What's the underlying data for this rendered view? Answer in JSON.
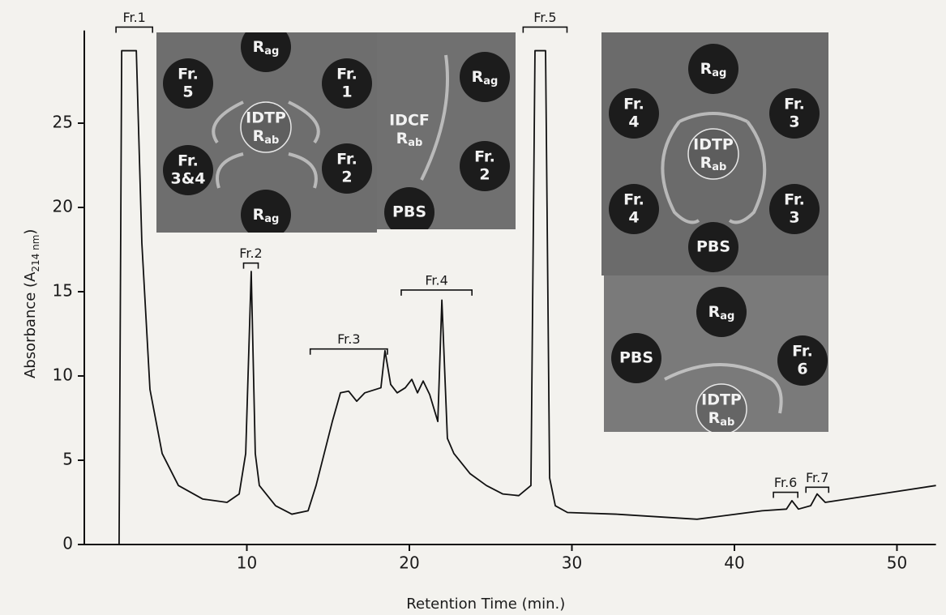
{
  "chart_data": {
    "type": "line",
    "xlabel": "Retention Time (min.)",
    "ylabel_parts": [
      "Absorbance (A",
      "214 nm",
      ")"
    ],
    "x": [
      2.14,
      2.3,
      3.2,
      3.54,
      4.04,
      4.79,
      5.79,
      7.28,
      8.78,
      9.53,
      9.93,
      10.27,
      10.52,
      10.77,
      11.77,
      12.77,
      13.77,
      14.26,
      15.26,
      15.76,
      16.26,
      16.76,
      17.26,
      18.25,
      18.5,
      18.85,
      19.25,
      19.75,
      20.15,
      20.5,
      20.85,
      21.25,
      21.75,
      22.0,
      22.34,
      22.74,
      23.74,
      24.74,
      25.74,
      26.73,
      27.48,
      27.73,
      28.38,
      28.63,
      28.98,
      29.73,
      32.72,
      37.7,
      41.7,
      43.2,
      43.54,
      43.94,
      44.69,
      45.09,
      45.59,
      49.68,
      52.4
    ],
    "values": [
      0,
      29.3,
      29.3,
      17.9,
      9.2,
      5.4,
      3.5,
      2.7,
      2.5,
      3.0,
      5.4,
      16.2,
      5.4,
      3.5,
      2.3,
      1.8,
      2.0,
      3.5,
      7.3,
      9.0,
      9.1,
      8.5,
      9.0,
      9.3,
      11.5,
      9.5,
      9.0,
      9.3,
      9.8,
      9.0,
      9.7,
      8.9,
      7.3,
      14.5,
      6.3,
      5.4,
      4.2,
      3.5,
      3.0,
      2.9,
      3.5,
      29.3,
      29.3,
      3.95,
      2.3,
      1.9,
      1.8,
      1.5,
      2.0,
      2.1,
      2.6,
      2.1,
      2.3,
      3.0,
      2.5,
      3.1,
      3.5
    ],
    "color": "#111111",
    "xlim": [
      0,
      52.4
    ],
    "ylim": [
      0,
      30.5
    ],
    "xticks": [
      10,
      20,
      30,
      40,
      50
    ],
    "yticks": [
      0,
      5,
      10,
      15,
      20,
      25
    ],
    "annotations": [
      {
        "label": "Fr.1",
        "x": [
          1.95,
          4.2
        ],
        "y": 30.7
      },
      {
        "label": "Fr.2",
        "x": [
          9.8,
          10.7
        ],
        "y": 16.7
      },
      {
        "label": "Fr.3",
        "x": [
          13.9,
          18.65
        ],
        "y": 11.6
      },
      {
        "label": "Fr.4",
        "x": [
          19.5,
          23.85
        ],
        "y": 15.1
      },
      {
        "label": "Fr.5",
        "x": [
          27.0,
          29.7
        ],
        "y": 30.7
      },
      {
        "label": "Fr.6",
        "x": [
          42.4,
          43.9
        ],
        "y": 3.1
      },
      {
        "label": "Fr.7",
        "x": [
          44.4,
          45.8
        ],
        "y": 3.4
      }
    ],
    "insets": [
      {
        "wells": [
          [
            [
              "R",
              "ag"
            ]
          ],
          [
            "Fr.",
            "5"
          ],
          [
            "Fr.",
            "1"
          ],
          [
            "IDTP",
            [
              "R",
              "ab"
            ]
          ],
          [
            "Fr.",
            "3&4"
          ],
          [
            "Fr.",
            "2"
          ],
          [
            [
              "R",
              "ag"
            ]
          ]
        ]
      },
      {
        "wells": [
          [
            [
              "R",
              "ag"
            ]
          ],
          [
            "IDCF",
            [
              "R",
              "ab"
            ]
          ],
          [
            "Fr.",
            "2"
          ],
          [
            "PBS"
          ]
        ]
      },
      {
        "wells": [
          [
            [
              "R",
              "ag"
            ]
          ],
          [
            "Fr.",
            "4"
          ],
          [
            "Fr.",
            "3"
          ],
          [
            "IDTP",
            [
              "R",
              "ab"
            ]
          ],
          [
            "Fr.",
            "4"
          ],
          [
            "Fr.",
            "3"
          ],
          [
            "PBS"
          ]
        ]
      },
      {
        "wells": [
          [
            [
              "R",
              "ag"
            ]
          ],
          [
            "PBS"
          ],
          [
            "Fr.",
            "6"
          ],
          [
            "IDTP",
            [
              "R",
              "ab"
            ]
          ]
        ]
      }
    ]
  }
}
